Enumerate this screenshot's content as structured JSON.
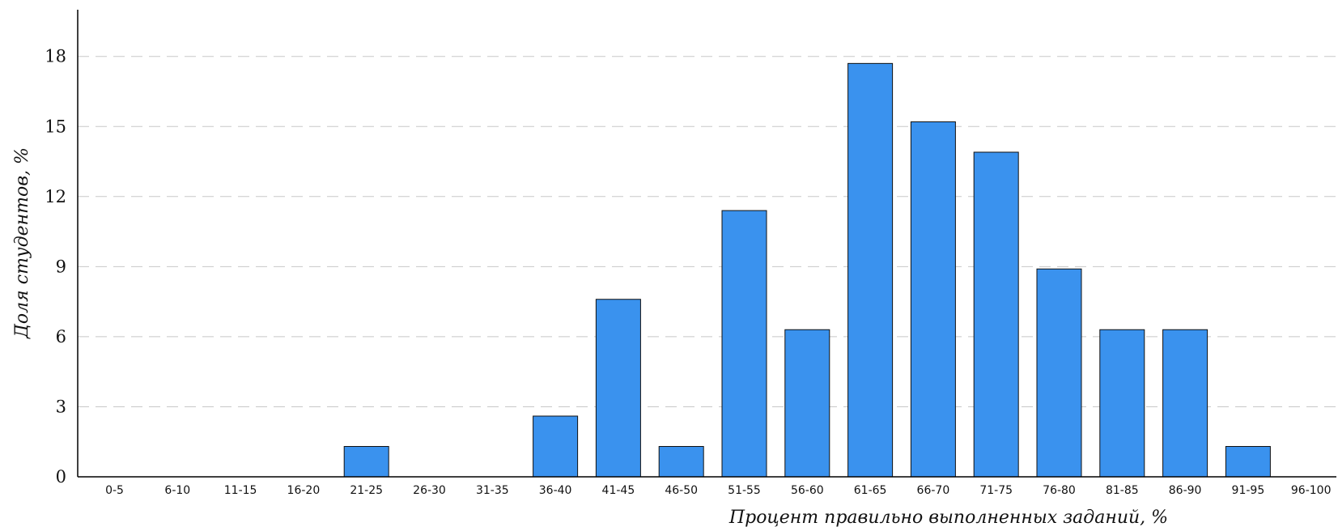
{
  "chart_data": {
    "type": "bar",
    "xlabel": "Процент правильно выполненных заданий, %",
    "ylabel": "Доля студентов, %",
    "categories": [
      "0-5",
      "6-10",
      "11-15",
      "16-20",
      "21-25",
      "26-30",
      "31-35",
      "36-40",
      "41-45",
      "46-50",
      "51-55",
      "56-60",
      "61-65",
      "66-70",
      "71-75",
      "76-80",
      "81-85",
      "86-90",
      "91-95",
      "96-100"
    ],
    "values": [
      0,
      0,
      0,
      0,
      1.3,
      0,
      0,
      2.6,
      7.6,
      1.3,
      11.4,
      6.3,
      17.7,
      15.2,
      13.9,
      8.9,
      6.3,
      6.3,
      1.3,
      0
    ],
    "ylim": [
      0,
      20
    ],
    "yticks": [
      0,
      3,
      6,
      9,
      12,
      15,
      18
    ],
    "grid": true,
    "bar_color": "#3a92ee"
  }
}
